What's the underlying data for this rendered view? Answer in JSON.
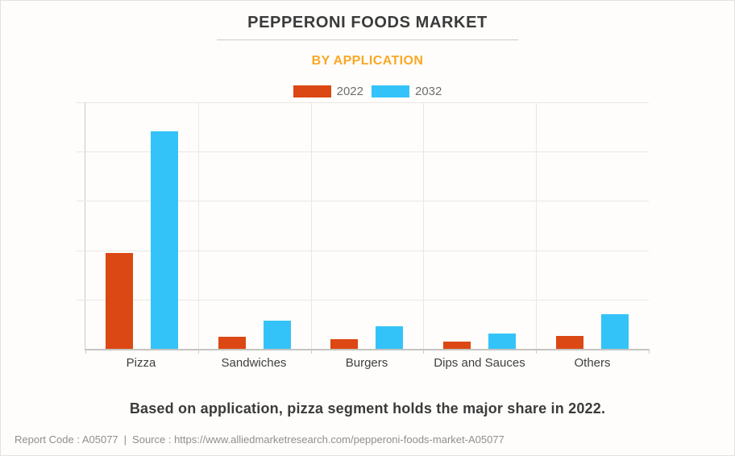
{
  "page": {
    "title": "PEPPERONI FOODS MARKET",
    "subtitle": "BY APPLICATION",
    "caption": "Based on application, pizza segment holds the major share in 2022.",
    "footer": {
      "report_code": "Report Code : A05077",
      "divider": "|",
      "source": "Source : https://www.alliedmarketresearch.com/pepperoni-foods-market-A05077"
    }
  },
  "legend": {
    "items": [
      {
        "label": "2022",
        "color": "#DB4814"
      },
      {
        "label": "2032",
        "color": "#34C3F8"
      }
    ]
  },
  "chart_data": {
    "type": "bar",
    "title": "PEPPERONI FOODS MARKET",
    "subtitle": "BY APPLICATION",
    "categories": [
      "Pizza",
      "Sandwiches",
      "Burgers",
      "Dips and Sauces",
      "Others"
    ],
    "series": [
      {
        "name": "2022",
        "color": "#DB4814",
        "values": [
          39.0,
          4.9,
          4.0,
          2.9,
          5.1
        ]
      },
      {
        "name": "2032",
        "color": "#34C3F8",
        "values": [
          88.4,
          11.4,
          9.3,
          6.2,
          13.9
        ]
      }
    ],
    "xlabel": "",
    "ylabel": "",
    "ylim": [
      0,
      100
    ],
    "y_tick_labels_visible": false,
    "value_scale": "percent-of-axis-max (y axis unlabeled in source)",
    "gridlines": {
      "horizontal_intervals": 5,
      "vertical_at_category_boundaries": true
    },
    "legend_position": "top-center"
  },
  "colors": {
    "background": "#FEFDFB",
    "page_border": "#E3E2DE",
    "title_text": "#3A3A3A",
    "subtitle_text": "#F9A825",
    "gridline": "#E8E7E3",
    "axis_line": "#C9C9C6",
    "category_label": "#3F3F3F",
    "legend_label": "#6E6E6E",
    "caption_text": "#3B3B3B",
    "footer_text": "#8F8F8F"
  }
}
